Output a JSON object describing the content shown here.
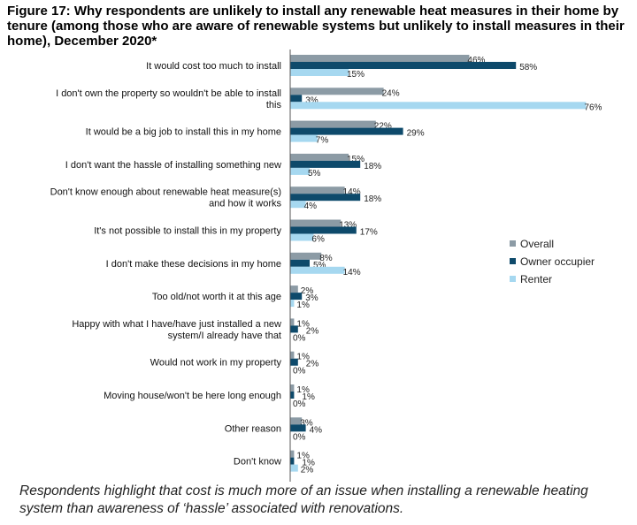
{
  "chart_data": {
    "type": "bar",
    "orientation": "horizontal",
    "title": "Figure 17: Why respondents are unlikely to install any renewable heat measures in their home by tenure (among those who are aware of renewable systems but unlikely to install measures in their home), December 2020*",
    "categories": [
      [
        "It would cost too much to install"
      ],
      [
        "I don't own the property so wouldn't be able to install",
        "this"
      ],
      [
        "It would be a big job to install this in my home"
      ],
      [
        "I don't want the hassle of installing something new"
      ],
      [
        "Don't know enough about renewable heat measure(s)",
        "and how it works"
      ],
      [
        "It's not possible to install this in my property"
      ],
      [
        "I don't make these decisions in my home"
      ],
      [
        "Too old/not worth it at this age"
      ],
      [
        "Happy with what I have/have just installed a new",
        "system/I already have that"
      ],
      [
        "Would not work in my property"
      ],
      [
        "Moving house/won't be here long enough"
      ],
      [
        "Other reason"
      ],
      [
        "Don't know"
      ]
    ],
    "series": [
      {
        "name": "Overall",
        "color": "#8c9ba5",
        "values": [
          46,
          24,
          22,
          15,
          14,
          13,
          8,
          2,
          1,
          1,
          1,
          3,
          1
        ]
      },
      {
        "name": "Owner occupier",
        "color": "#0e4a6b",
        "values": [
          58,
          3,
          29,
          18,
          18,
          17,
          5,
          3,
          2,
          2,
          1,
          4,
          1
        ]
      },
      {
        "name": "Renter",
        "color": "#a6d8f0",
        "values": [
          15,
          76,
          7,
          5,
          4,
          6,
          14,
          1,
          0,
          0,
          0,
          0,
          2
        ]
      }
    ],
    "value_suffix": "%",
    "xlim": [
      0,
      80
    ],
    "legend_position": "right"
  },
  "caption": "Respondents highlight that cost is much more of an issue when installing a renewable heating system than awareness of ‘hassle’ associated with renovations."
}
